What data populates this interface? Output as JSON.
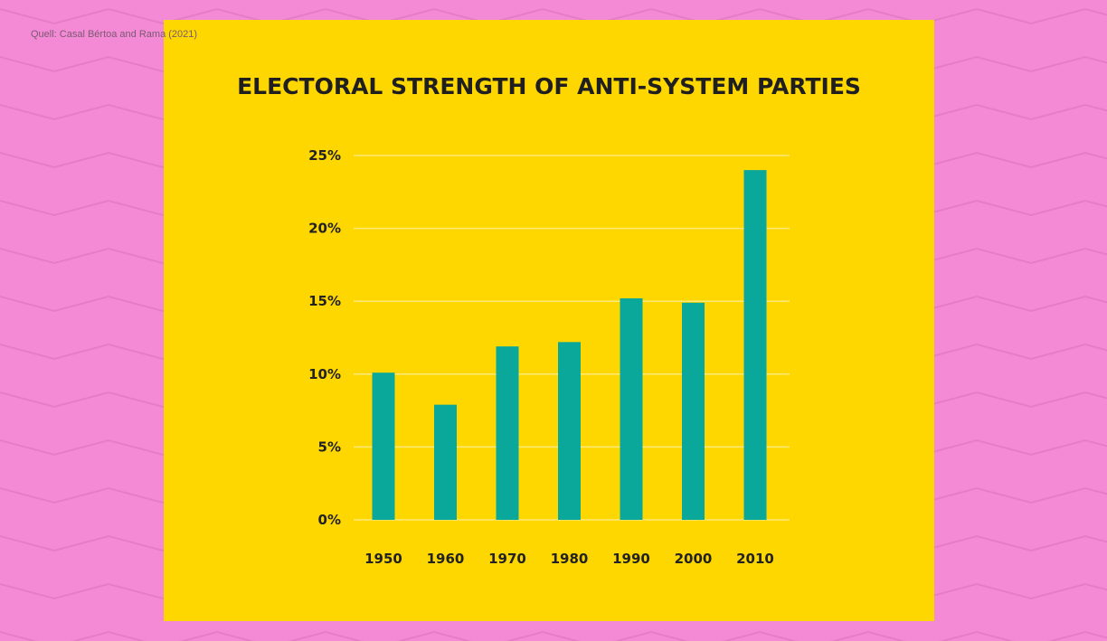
{
  "source_note": "Quell: Casal Bértoa and Rama (2021)",
  "colors": {
    "background": "#f48ad6",
    "zigzag": "#e57cc6",
    "panel": "#ffd700",
    "bar": "#0aa89a",
    "gridline": "#ffe978",
    "text": "#1f1f1f"
  },
  "chart_data": {
    "type": "bar",
    "title": "ELECTORAL STRENGTH OF ANTI-SYSTEM PARTIES",
    "xlabel": "",
    "ylabel": "",
    "categories": [
      "1950",
      "1960",
      "1970",
      "1980",
      "1990",
      "2000",
      "2010"
    ],
    "values": [
      10.1,
      7.9,
      11.9,
      12.2,
      15.2,
      14.9,
      24.0
    ],
    "y_ticks": [
      "0%",
      "5%",
      "10%",
      "15%",
      "20%",
      "25%"
    ],
    "ylim": [
      0,
      25
    ],
    "grid": true,
    "legend": "none"
  }
}
